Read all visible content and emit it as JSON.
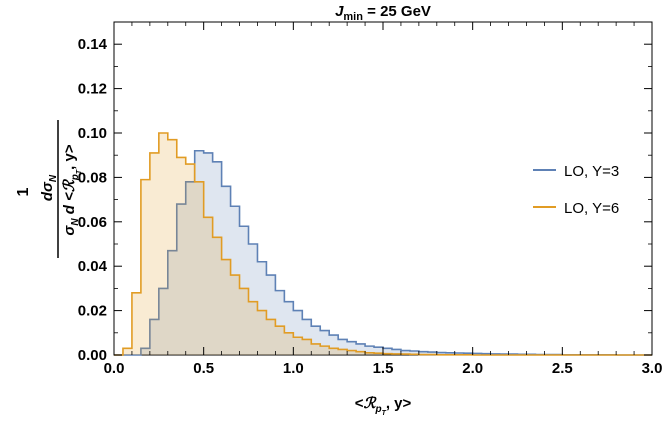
{
  "chart_data": {
    "type": "histogram",
    "title": {
      "base": "J",
      "sub": "min",
      "rest": " = 25 GeV"
    },
    "xlabel": {
      "pre": "<",
      "script": "ℛ",
      "sub": "p",
      "subsub": "T",
      "post": ", y>"
    },
    "ylabel": {
      "prefix": "1",
      "num": "dσ",
      "num_sub": "N",
      "den_pre": "σ",
      "den_sub": "N",
      "den_mid": " d <",
      "den_script": "ℛ",
      "den_sub2": "p",
      "den_subsub": "T",
      "den_post": ", y>"
    },
    "xlim": [
      0,
      3.0
    ],
    "ylim": [
      0,
      0.15
    ],
    "x_ticks": [
      "0.0",
      "0.5",
      "1.0",
      "1.5",
      "2.0",
      "2.5",
      "3.0"
    ],
    "y_ticks": [
      "0.00",
      "0.02",
      "0.04",
      "0.06",
      "0.08",
      "0.10",
      "0.12",
      "0.14"
    ],
    "bin_start": 0.0,
    "bin_width": 0.05,
    "legend_position": "right",
    "grid": false,
    "series": [
      {
        "name": "LO, Y=3",
        "color": "#5e81b5",
        "fill": "#5e81b5",
        "values": [
          0.0,
          0.0,
          0.0,
          0.003,
          0.016,
          0.03,
          0.047,
          0.068,
          0.078,
          0.092,
          0.091,
          0.087,
          0.076,
          0.067,
          0.058,
          0.05,
          0.042,
          0.036,
          0.029,
          0.024,
          0.02,
          0.016,
          0.013,
          0.011,
          0.009,
          0.007,
          0.006,
          0.005,
          0.004,
          0.0035,
          0.003,
          0.0025,
          0.002,
          0.0018,
          0.0015,
          0.0013,
          0.0011,
          0.001,
          0.0009,
          0.0008,
          0.0007,
          0.0006,
          0.0005,
          0.0004,
          0.0004,
          0.0003,
          0.0003,
          0.0002,
          0.0002,
          0.0002,
          0.0001,
          0.0001,
          0.0001,
          0.0001,
          0.0001,
          0.0001,
          0.0,
          0.0,
          0.0,
          0.0
        ]
      },
      {
        "name": "LO, Y=6",
        "color": "#e19c24",
        "fill": "#e19c24",
        "values": [
          0.0,
          0.003,
          0.028,
          0.079,
          0.091,
          0.1,
          0.097,
          0.089,
          0.086,
          0.078,
          0.062,
          0.053,
          0.043,
          0.036,
          0.03,
          0.024,
          0.02,
          0.016,
          0.013,
          0.01,
          0.008,
          0.007,
          0.005,
          0.004,
          0.003,
          0.0025,
          0.002,
          0.0015,
          0.001,
          0.0008,
          0.0006,
          0.0005,
          0.0004,
          0.0003,
          0.0002,
          0.0002,
          0.0001,
          0.0001,
          0.0001,
          0.0001,
          0.0,
          0.0,
          0.0,
          0.0,
          0.0,
          0.0,
          0.0,
          0.0,
          0.0,
          0.0,
          0.0,
          0.0,
          0.0,
          0.0,
          0.0,
          0.0,
          0.0,
          0.0,
          0.0,
          0.0
        ]
      }
    ]
  }
}
